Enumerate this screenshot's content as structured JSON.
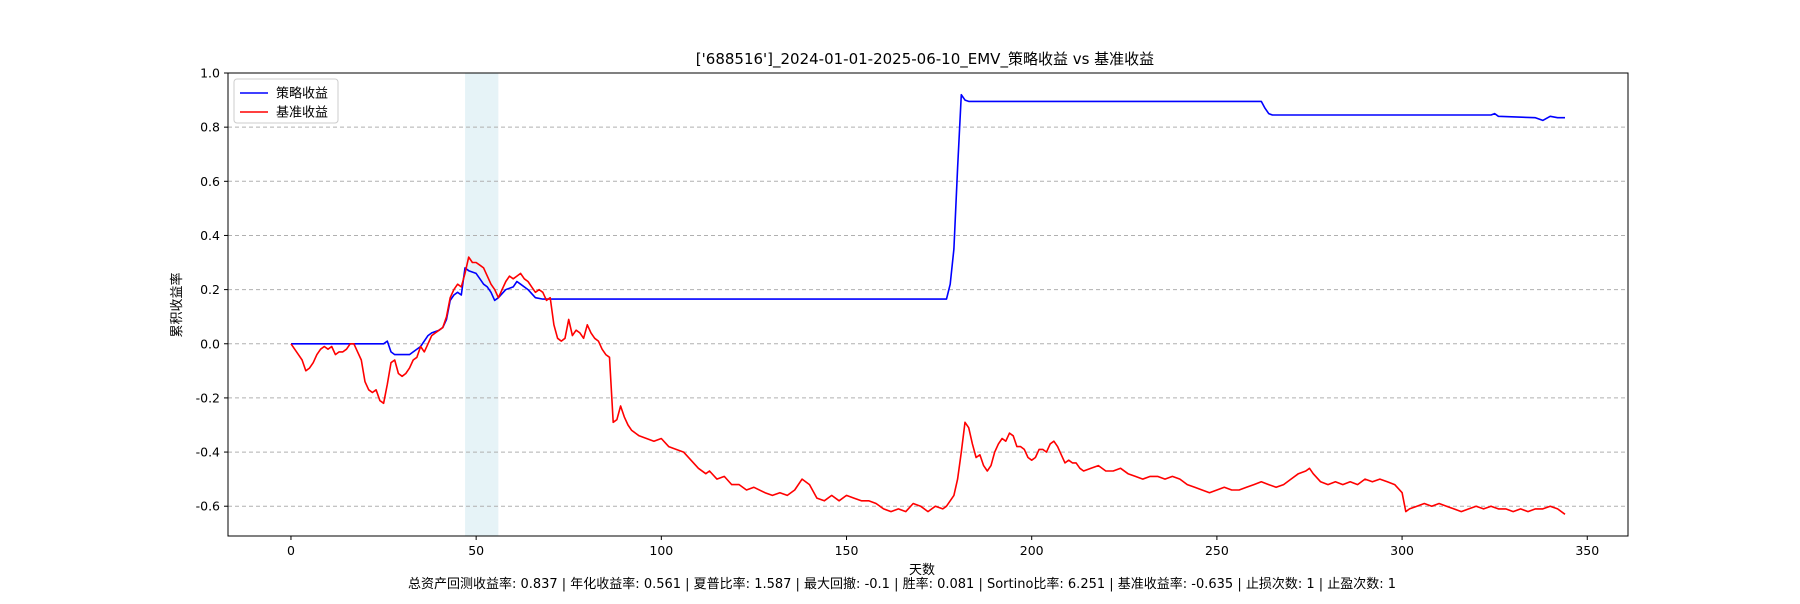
{
  "chart_data": {
    "type": "line",
    "title": "['688516']_2024-01-01-2025-06-10_EMV_策略收益 vs 基准收益",
    "xlabel": "天数",
    "ylabel": "累积收益率",
    "xlim": [
      -17,
      361
    ],
    "ylim": [
      -0.71,
      1.0
    ],
    "x_ticks": [
      0,
      50,
      100,
      150,
      200,
      250,
      300,
      350
    ],
    "y_ticks": [
      1.0,
      0.8,
      0.6,
      0.4,
      0.2,
      0.0,
      -0.2,
      -0.4,
      -0.6
    ],
    "y_tick_labels": [
      "1.0",
      "0.8",
      "0.6",
      "0.4",
      "0.2",
      "0.0",
      "-0.2",
      "-0.4",
      "-0.6"
    ],
    "grid": "horizontal dashed",
    "legend_position": "upper-left",
    "highlight_span": [
      47,
      56
    ],
    "highlight_color": "#add8e6",
    "series": [
      {
        "name": "策略收益",
        "color": "#0000ff",
        "points": [
          [
            0,
            0
          ],
          [
            25,
            0
          ],
          [
            26,
            0.01
          ],
          [
            27,
            -0.03
          ],
          [
            28,
            -0.04
          ],
          [
            32,
            -0.04
          ],
          [
            33,
            -0.03
          ],
          [
            35,
            -0.01
          ],
          [
            37,
            0.03
          ],
          [
            38,
            0.04
          ],
          [
            40,
            0.05
          ],
          [
            41,
            0.06
          ],
          [
            42,
            0.09
          ],
          [
            43,
            0.16
          ],
          [
            44,
            0.18
          ],
          [
            45,
            0.19
          ],
          [
            46,
            0.18
          ],
          [
            47,
            0.28
          ],
          [
            48,
            0.27
          ],
          [
            50,
            0.26
          ],
          [
            51,
            0.24
          ],
          [
            52,
            0.22
          ],
          [
            53,
            0.21
          ],
          [
            54,
            0.19
          ],
          [
            55,
            0.16
          ],
          [
            56,
            0.17
          ],
          [
            58,
            0.2
          ],
          [
            60,
            0.21
          ],
          [
            61,
            0.23
          ],
          [
            62,
            0.22
          ],
          [
            64,
            0.2
          ],
          [
            66,
            0.17
          ],
          [
            68,
            0.165
          ],
          [
            70,
            0.165
          ],
          [
            177,
            0.165
          ],
          [
            178,
            0.22
          ],
          [
            179,
            0.35
          ],
          [
            180,
            0.65
          ],
          [
            181,
            0.92
          ],
          [
            182,
            0.9
          ],
          [
            183,
            0.895
          ],
          [
            262,
            0.895
          ],
          [
            263,
            0.87
          ],
          [
            264,
            0.85
          ],
          [
            265,
            0.845
          ],
          [
            324,
            0.845
          ],
          [
            325,
            0.85
          ],
          [
            326,
            0.84
          ],
          [
            336,
            0.835
          ],
          [
            338,
            0.825
          ],
          [
            340,
            0.84
          ],
          [
            342,
            0.835
          ],
          [
            344,
            0.835
          ]
        ]
      },
      {
        "name": "基准收益",
        "color": "#ff0000",
        "points": [
          [
            0,
            0
          ],
          [
            1,
            -0.02
          ],
          [
            2,
            -0.04
          ],
          [
            3,
            -0.06
          ],
          [
            4,
            -0.1
          ],
          [
            5,
            -0.09
          ],
          [
            6,
            -0.07
          ],
          [
            7,
            -0.04
          ],
          [
            8,
            -0.02
          ],
          [
            9,
            -0.01
          ],
          [
            10,
            -0.02
          ],
          [
            11,
            -0.01
          ],
          [
            12,
            -0.04
          ],
          [
            13,
            -0.03
          ],
          [
            14,
            -0.03
          ],
          [
            15,
            -0.02
          ],
          [
            16,
            0
          ],
          [
            17,
            0
          ],
          [
            18,
            -0.03
          ],
          [
            19,
            -0.06
          ],
          [
            20,
            -0.14
          ],
          [
            21,
            -0.17
          ],
          [
            22,
            -0.18
          ],
          [
            23,
            -0.17
          ],
          [
            24,
            -0.21
          ],
          [
            25,
            -0.22
          ],
          [
            26,
            -0.15
          ],
          [
            27,
            -0.07
          ],
          [
            28,
            -0.06
          ],
          [
            29,
            -0.11
          ],
          [
            30,
            -0.12
          ],
          [
            31,
            -0.11
          ],
          [
            32,
            -0.09
          ],
          [
            33,
            -0.06
          ],
          [
            34,
            -0.05
          ],
          [
            35,
            -0.01
          ],
          [
            36,
            -0.03
          ],
          [
            37,
            0.0
          ],
          [
            38,
            0.03
          ],
          [
            39,
            0.04
          ],
          [
            40,
            0.05
          ],
          [
            41,
            0.06
          ],
          [
            42,
            0.1
          ],
          [
            43,
            0.17
          ],
          [
            44,
            0.2
          ],
          [
            45,
            0.22
          ],
          [
            46,
            0.21
          ],
          [
            47,
            0.26
          ],
          [
            48,
            0.32
          ],
          [
            49,
            0.3
          ],
          [
            50,
            0.3
          ],
          [
            51,
            0.29
          ],
          [
            52,
            0.28
          ],
          [
            53,
            0.25
          ],
          [
            54,
            0.22
          ],
          [
            55,
            0.2
          ],
          [
            56,
            0.17
          ],
          [
            57,
            0.2
          ],
          [
            58,
            0.23
          ],
          [
            59,
            0.25
          ],
          [
            60,
            0.24
          ],
          [
            61,
            0.25
          ],
          [
            62,
            0.26
          ],
          [
            63,
            0.24
          ],
          [
            64,
            0.23
          ],
          [
            65,
            0.21
          ],
          [
            66,
            0.19
          ],
          [
            67,
            0.2
          ],
          [
            68,
            0.19
          ],
          [
            69,
            0.16
          ],
          [
            70,
            0.17
          ],
          [
            71,
            0.07
          ],
          [
            72,
            0.02
          ],
          [
            73,
            0.01
          ],
          [
            74,
            0.02
          ],
          [
            75,
            0.09
          ],
          [
            76,
            0.03
          ],
          [
            77,
            0.05
          ],
          [
            78,
            0.04
          ],
          [
            79,
            0.02
          ],
          [
            80,
            0.07
          ],
          [
            81,
            0.04
          ],
          [
            82,
            0.02
          ],
          [
            83,
            0.01
          ],
          [
            84,
            -0.02
          ],
          [
            85,
            -0.04
          ],
          [
            86,
            -0.05
          ],
          [
            87,
            -0.29
          ],
          [
            88,
            -0.28
          ],
          [
            89,
            -0.23
          ],
          [
            90,
            -0.27
          ],
          [
            91,
            -0.3
          ],
          [
            92,
            -0.32
          ],
          [
            94,
            -0.34
          ],
          [
            96,
            -0.35
          ],
          [
            98,
            -0.36
          ],
          [
            100,
            -0.35
          ],
          [
            102,
            -0.38
          ],
          [
            104,
            -0.39
          ],
          [
            106,
            -0.4
          ],
          [
            108,
            -0.43
          ],
          [
            110,
            -0.46
          ],
          [
            112,
            -0.48
          ],
          [
            113,
            -0.47
          ],
          [
            115,
            -0.5
          ],
          [
            117,
            -0.49
          ],
          [
            119,
            -0.52
          ],
          [
            121,
            -0.52
          ],
          [
            123,
            -0.54
          ],
          [
            125,
            -0.53
          ],
          [
            128,
            -0.55
          ],
          [
            130,
            -0.56
          ],
          [
            132,
            -0.55
          ],
          [
            134,
            -0.56
          ],
          [
            136,
            -0.54
          ],
          [
            138,
            -0.5
          ],
          [
            140,
            -0.52
          ],
          [
            142,
            -0.57
          ],
          [
            144,
            -0.58
          ],
          [
            146,
            -0.56
          ],
          [
            148,
            -0.58
          ],
          [
            150,
            -0.56
          ],
          [
            152,
            -0.57
          ],
          [
            154,
            -0.58
          ],
          [
            156,
            -0.58
          ],
          [
            158,
            -0.59
          ],
          [
            160,
            -0.61
          ],
          [
            162,
            -0.62
          ],
          [
            164,
            -0.61
          ],
          [
            166,
            -0.62
          ],
          [
            168,
            -0.59
          ],
          [
            170,
            -0.6
          ],
          [
            172,
            -0.62
          ],
          [
            174,
            -0.6
          ],
          [
            176,
            -0.61
          ],
          [
            177,
            -0.6
          ],
          [
            178,
            -0.58
          ],
          [
            179,
            -0.56
          ],
          [
            180,
            -0.5
          ],
          [
            181,
            -0.4
          ],
          [
            182,
            -0.29
          ],
          [
            183,
            -0.31
          ],
          [
            184,
            -0.37
          ],
          [
            185,
            -0.42
          ],
          [
            186,
            -0.41
          ],
          [
            187,
            -0.45
          ],
          [
            188,
            -0.47
          ],
          [
            189,
            -0.45
          ],
          [
            190,
            -0.4
          ],
          [
            191,
            -0.37
          ],
          [
            192,
            -0.35
          ],
          [
            193,
            -0.36
          ],
          [
            194,
            -0.33
          ],
          [
            195,
            -0.34
          ],
          [
            196,
            -0.38
          ],
          [
            197,
            -0.38
          ],
          [
            198,
            -0.39
          ],
          [
            199,
            -0.42
          ],
          [
            200,
            -0.43
          ],
          [
            201,
            -0.42
          ],
          [
            202,
            -0.39
          ],
          [
            203,
            -0.39
          ],
          [
            204,
            -0.4
          ],
          [
            205,
            -0.37
          ],
          [
            206,
            -0.36
          ],
          [
            207,
            -0.38
          ],
          [
            208,
            -0.41
          ],
          [
            209,
            -0.44
          ],
          [
            210,
            -0.43
          ],
          [
            211,
            -0.44
          ],
          [
            212,
            -0.44
          ],
          [
            213,
            -0.46
          ],
          [
            214,
            -0.47
          ],
          [
            216,
            -0.46
          ],
          [
            218,
            -0.45
          ],
          [
            220,
            -0.47
          ],
          [
            222,
            -0.47
          ],
          [
            224,
            -0.46
          ],
          [
            226,
            -0.48
          ],
          [
            228,
            -0.49
          ],
          [
            230,
            -0.5
          ],
          [
            232,
            -0.49
          ],
          [
            234,
            -0.49
          ],
          [
            236,
            -0.5
          ],
          [
            238,
            -0.49
          ],
          [
            240,
            -0.5
          ],
          [
            242,
            -0.52
          ],
          [
            244,
            -0.53
          ],
          [
            246,
            -0.54
          ],
          [
            248,
            -0.55
          ],
          [
            250,
            -0.54
          ],
          [
            252,
            -0.53
          ],
          [
            254,
            -0.54
          ],
          [
            256,
            -0.54
          ],
          [
            258,
            -0.53
          ],
          [
            260,
            -0.52
          ],
          [
            262,
            -0.51
          ],
          [
            264,
            -0.52
          ],
          [
            266,
            -0.53
          ],
          [
            268,
            -0.52
          ],
          [
            270,
            -0.5
          ],
          [
            272,
            -0.48
          ],
          [
            274,
            -0.47
          ],
          [
            275,
            -0.46
          ],
          [
            276,
            -0.48
          ],
          [
            278,
            -0.51
          ],
          [
            280,
            -0.52
          ],
          [
            282,
            -0.51
          ],
          [
            284,
            -0.52
          ],
          [
            286,
            -0.51
          ],
          [
            288,
            -0.52
          ],
          [
            290,
            -0.5
          ],
          [
            292,
            -0.51
          ],
          [
            294,
            -0.5
          ],
          [
            296,
            -0.51
          ],
          [
            298,
            -0.52
          ],
          [
            300,
            -0.55
          ],
          [
            301,
            -0.62
          ],
          [
            302,
            -0.61
          ],
          [
            304,
            -0.6
          ],
          [
            306,
            -0.59
          ],
          [
            308,
            -0.6
          ],
          [
            310,
            -0.59
          ],
          [
            312,
            -0.6
          ],
          [
            314,
            -0.61
          ],
          [
            316,
            -0.62
          ],
          [
            318,
            -0.61
          ],
          [
            320,
            -0.6
          ],
          [
            322,
            -0.61
          ],
          [
            324,
            -0.6
          ],
          [
            326,
            -0.61
          ],
          [
            328,
            -0.61
          ],
          [
            330,
            -0.62
          ],
          [
            332,
            -0.61
          ],
          [
            334,
            -0.62
          ],
          [
            336,
            -0.61
          ],
          [
            338,
            -0.61
          ],
          [
            340,
            -0.6
          ],
          [
            342,
            -0.61
          ],
          [
            344,
            -0.63
          ]
        ]
      }
    ]
  },
  "metrics_text": "总资产回测收益率: 0.837 | 年化收益率: 0.561 | 夏普比率: 1.587 | 最大回撤: -0.1 | 胜率: 0.081 | Sortino比率: 6.251 | 基准收益率: -0.635 | 止损次数: 1 | 止盈次数: 1"
}
